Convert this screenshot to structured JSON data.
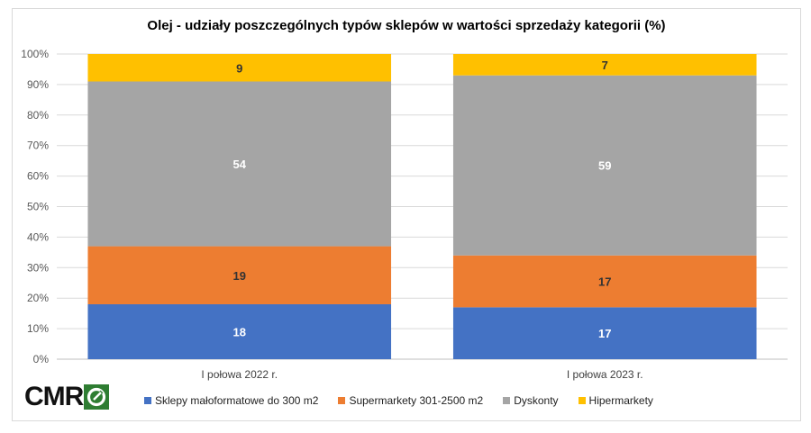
{
  "chart_data": {
    "type": "bar",
    "stacked": true,
    "title": "Olej - udziały poszczególnych typów sklepów w wartości sprzedaży kategorii (%)",
    "categories": [
      "I połowa 2022 r.",
      "I połowa 2023 r."
    ],
    "series": [
      {
        "name": "Sklepy małoformatowe do 300 m2",
        "color": "#4472c4",
        "values": [
          18,
          17
        ],
        "label_color": "#ffffff"
      },
      {
        "name": "Supermarkety 301-2500 m2",
        "color": "#ed7d31",
        "values": [
          19,
          17
        ],
        "label_color": "#333333"
      },
      {
        "name": "Dyskonty",
        "color": "#a5a5a5",
        "values": [
          54,
          59
        ],
        "label_color": "#ffffff"
      },
      {
        "name": "Hipermarkety",
        "color": "#ffc000",
        "values": [
          9,
          7
        ],
        "label_color": "#333333"
      }
    ],
    "y_ticks": [
      "0%",
      "10%",
      "20%",
      "30%",
      "40%",
      "50%",
      "60%",
      "70%",
      "80%",
      "90%",
      "100%"
    ],
    "ylim": [
      0,
      100
    ],
    "grid": true,
    "legend": "bottom"
  },
  "logo": {
    "text": "CMR"
  }
}
